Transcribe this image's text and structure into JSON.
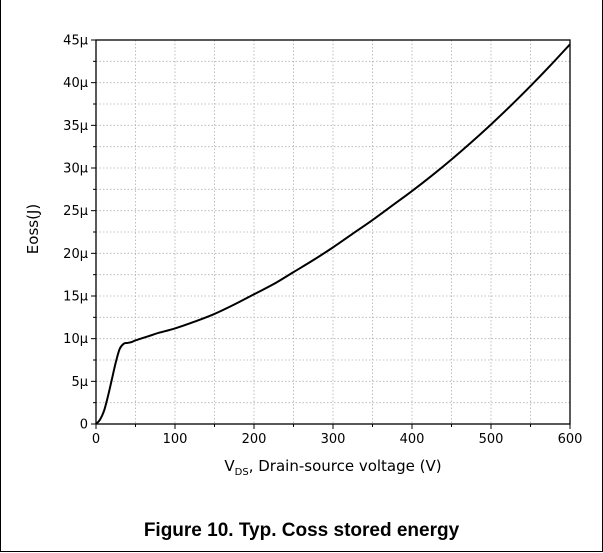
{
  "figure_caption": "Figure 10. Typ. Coss stored energy",
  "chart_data": {
    "type": "line",
    "title": "",
    "xlabel_main": "V",
    "xlabel_sub": "DS",
    "xlabel_rest": ", Drain-source voltage (V)",
    "ylabel": "Eoss(J)",
    "xlim": [
      0,
      600
    ],
    "ylim": [
      0,
      4.5e-05
    ],
    "x_ticks": [
      0,
      100,
      200,
      300,
      400,
      500,
      600
    ],
    "x_tick_labels": [
      "0",
      "100",
      "200",
      "300",
      "400",
      "500",
      "600"
    ],
    "y_ticks": [
      0,
      5e-06,
      1e-05,
      1.5e-05,
      2e-05,
      2.5e-05,
      3e-05,
      3.5e-05,
      4e-05,
      4.5e-05
    ],
    "y_tick_labels": [
      "0",
      "5µ",
      "10µ",
      "15µ",
      "20µ",
      "25µ",
      "30µ",
      "35µ",
      "40µ",
      "45µ"
    ],
    "grid": true,
    "line_color": "#000000",
    "series": [
      {
        "x": [
          0,
          5,
          10,
          15,
          20,
          25,
          30,
          35,
          40,
          45,
          50,
          60,
          70,
          80,
          100,
          125,
          150,
          175,
          200,
          225,
          250,
          275,
          300,
          325,
          350,
          375,
          400,
          425,
          450,
          475,
          500,
          525,
          550,
          575,
          600
        ],
        "y": [
          0,
          5e-07,
          1.5e-06,
          3.2e-06,
          5.2e-06,
          7.2e-06,
          8.8e-06,
          9.4e-06,
          9.5e-06,
          9.6e-06,
          9.8e-06,
          1.01e-05,
          1.04e-05,
          1.07e-05,
          1.12e-05,
          1.2e-05,
          1.29e-05,
          1.4e-05,
          1.52e-05,
          1.64e-05,
          1.78e-05,
          1.92e-05,
          2.07e-05,
          2.23e-05,
          2.39e-05,
          2.56e-05,
          2.73e-05,
          2.91e-05,
          3.1e-05,
          3.3e-05,
          3.51e-05,
          3.73e-05,
          3.96e-05,
          4.2e-05,
          4.45e-05
        ]
      }
    ]
  }
}
